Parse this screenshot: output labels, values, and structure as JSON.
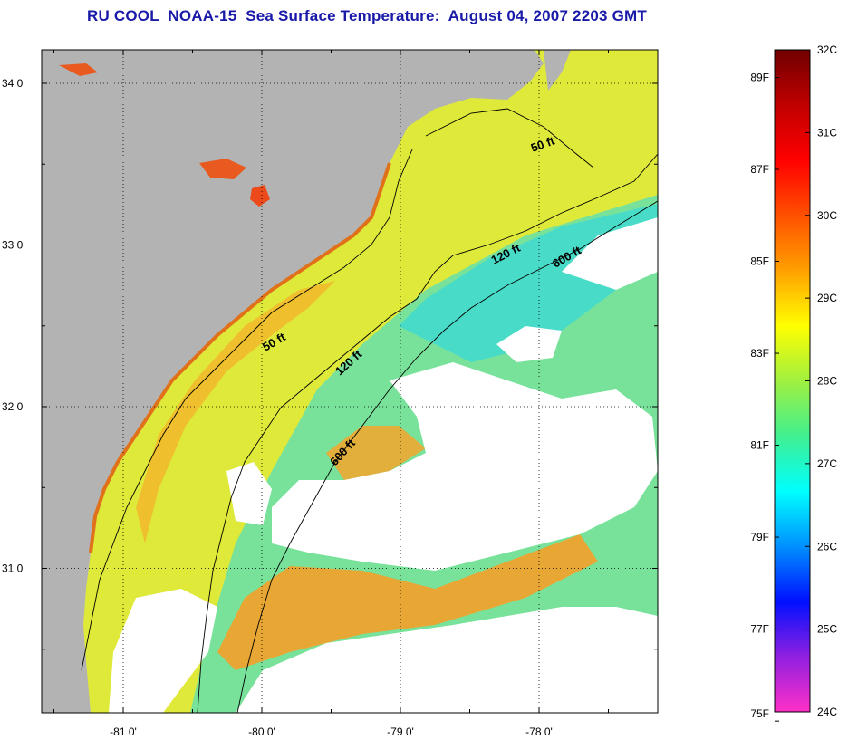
{
  "title": "RU COOL  NOAA-15  Sea Surface Temperature:  August 04, 2007 2203 GMT",
  "map": {
    "lat_ticks": [
      {
        "label": "34 0'",
        "lat": 34.0
      },
      {
        "label": "33 0'",
        "lat": 33.0
      },
      {
        "label": "32 0'",
        "lat": 32.0
      },
      {
        "label": "31 0'",
        "lat": 31.0
      }
    ],
    "lon_ticks": [
      {
        "label": "-81 0'",
        "lon": -81.0
      },
      {
        "label": "-80 0'",
        "lon": -80.0
      },
      {
        "label": "-79 0'",
        "lon": -79.0
      },
      {
        "label": "-78 0'",
        "lon": -78.0
      }
    ],
    "contour_labels": [
      "50 ft",
      "120 ft",
      "600 ft",
      "50 ft",
      "120 ft",
      "600 ft"
    ],
    "colors": {
      "land": "#b3b3b3",
      "cloud": "#ffffff",
      "warm_shelf": "#f3a228",
      "mid_shelf": "#e9e63a",
      "cool_water": "#6fe0a0",
      "cyan_water": "#3fd9d0"
    }
  },
  "colorbar": {
    "celsius_labels": [
      "32C",
      "31C",
      "30C",
      "29C",
      "28C",
      "27C",
      "26C",
      "25C",
      "24C"
    ],
    "fahrenheit_labels": [
      "89F",
      "87F",
      "85F",
      "83F",
      "81F",
      "79F",
      "77F",
      "75F"
    ],
    "celsius_min": 24,
    "celsius_max": 32,
    "gradient_colors": [
      "#ff30c8",
      "#9020e0",
      "#0010ff",
      "#0090ff",
      "#00ffff",
      "#40f090",
      "#a0f040",
      "#ffff00",
      "#ffa000",
      "#ff5000",
      "#ff0000",
      "#c00000",
      "#700000"
    ]
  }
}
